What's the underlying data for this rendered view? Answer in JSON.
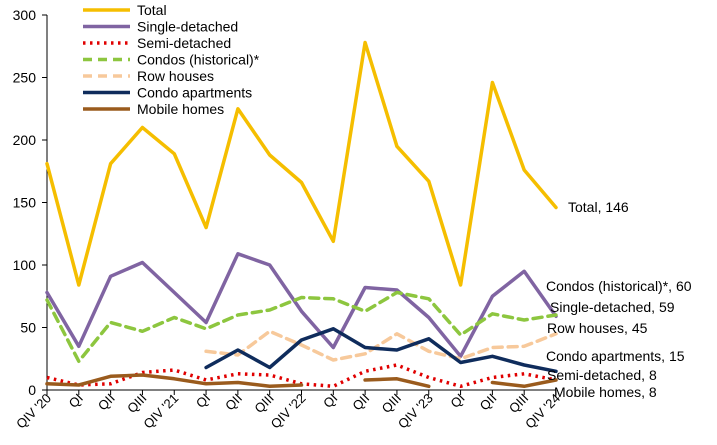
{
  "chart_data": {
    "type": "line",
    "title": "",
    "xlabel": "",
    "ylabel": "",
    "ylim": [
      0,
      300
    ],
    "yticks": [
      0,
      50,
      100,
      150,
      200,
      250,
      300
    ],
    "grid": false,
    "legend_position": "top-center",
    "categories": [
      "QIV '20",
      "QI",
      "QII",
      "QIII",
      "QIV '21",
      "QI",
      "QII",
      "QIII",
      "QIV '22",
      "QI",
      "QII",
      "QIII",
      "QIV '23",
      "QI",
      "QII",
      "QIII",
      "QIV '24"
    ],
    "series": [
      {
        "name": "Total",
        "color": "#F5BE00",
        "dash": "solid",
        "values": [
          181,
          84,
          181,
          210,
          189,
          130,
          225,
          188,
          166,
          119,
          278,
          195,
          167,
          84,
          246,
          176,
          146
        ],
        "end_label": "Total, 146"
      },
      {
        "name": "Single-detached",
        "color": "#8064A2",
        "dash": "solid",
        "values": [
          78,
          35,
          91,
          102,
          78,
          54,
          109,
          100,
          63,
          34,
          82,
          80,
          58,
          27,
          75,
          95,
          59
        ],
        "end_label": "Single-detached, 59"
      },
      {
        "name": "Semi-detached",
        "color": "#E00000",
        "dash": "dot",
        "values": [
          10,
          4,
          5,
          14,
          16,
          8,
          13,
          12,
          5,
          3,
          15,
          20,
          10,
          3,
          10,
          13,
          8
        ],
        "end_label": "Semi-detached, 8"
      },
      {
        "name": "Condos (historical)*",
        "color": "#8DC63F",
        "dash": "dash",
        "values": [
          72,
          23,
          54,
          47,
          58,
          49,
          60,
          64,
          74,
          73,
          63,
          78,
          73,
          44,
          61,
          56,
          60
        ],
        "end_label": "Condos (historical)*, 60"
      },
      {
        "name": "Row houses",
        "color": "#F7C99B",
        "dash": "dash",
        "values": [
          null,
          null,
          null,
          null,
          null,
          31,
          28,
          47,
          36,
          24,
          29,
          45,
          31,
          25,
          34,
          35,
          45
        ],
        "end_label": "Row houses, 45"
      },
      {
        "name": "Condo apartments",
        "color": "#0F2C5C",
        "dash": "solid",
        "values": [
          null,
          null,
          null,
          null,
          null,
          18,
          32,
          18,
          40,
          49,
          34,
          32,
          41,
          22,
          27,
          20,
          15
        ],
        "end_label": "Condo apartments, 15"
      },
      {
        "name": "Mobile homes",
        "color": "#9A5B1D",
        "dash": "solid",
        "values": [
          5,
          4,
          11,
          12,
          9,
          5,
          6,
          3,
          4,
          null,
          8,
          9,
          3,
          null,
          6,
          3,
          8
        ],
        "end_label": "Mobile homes, 8"
      }
    ]
  }
}
